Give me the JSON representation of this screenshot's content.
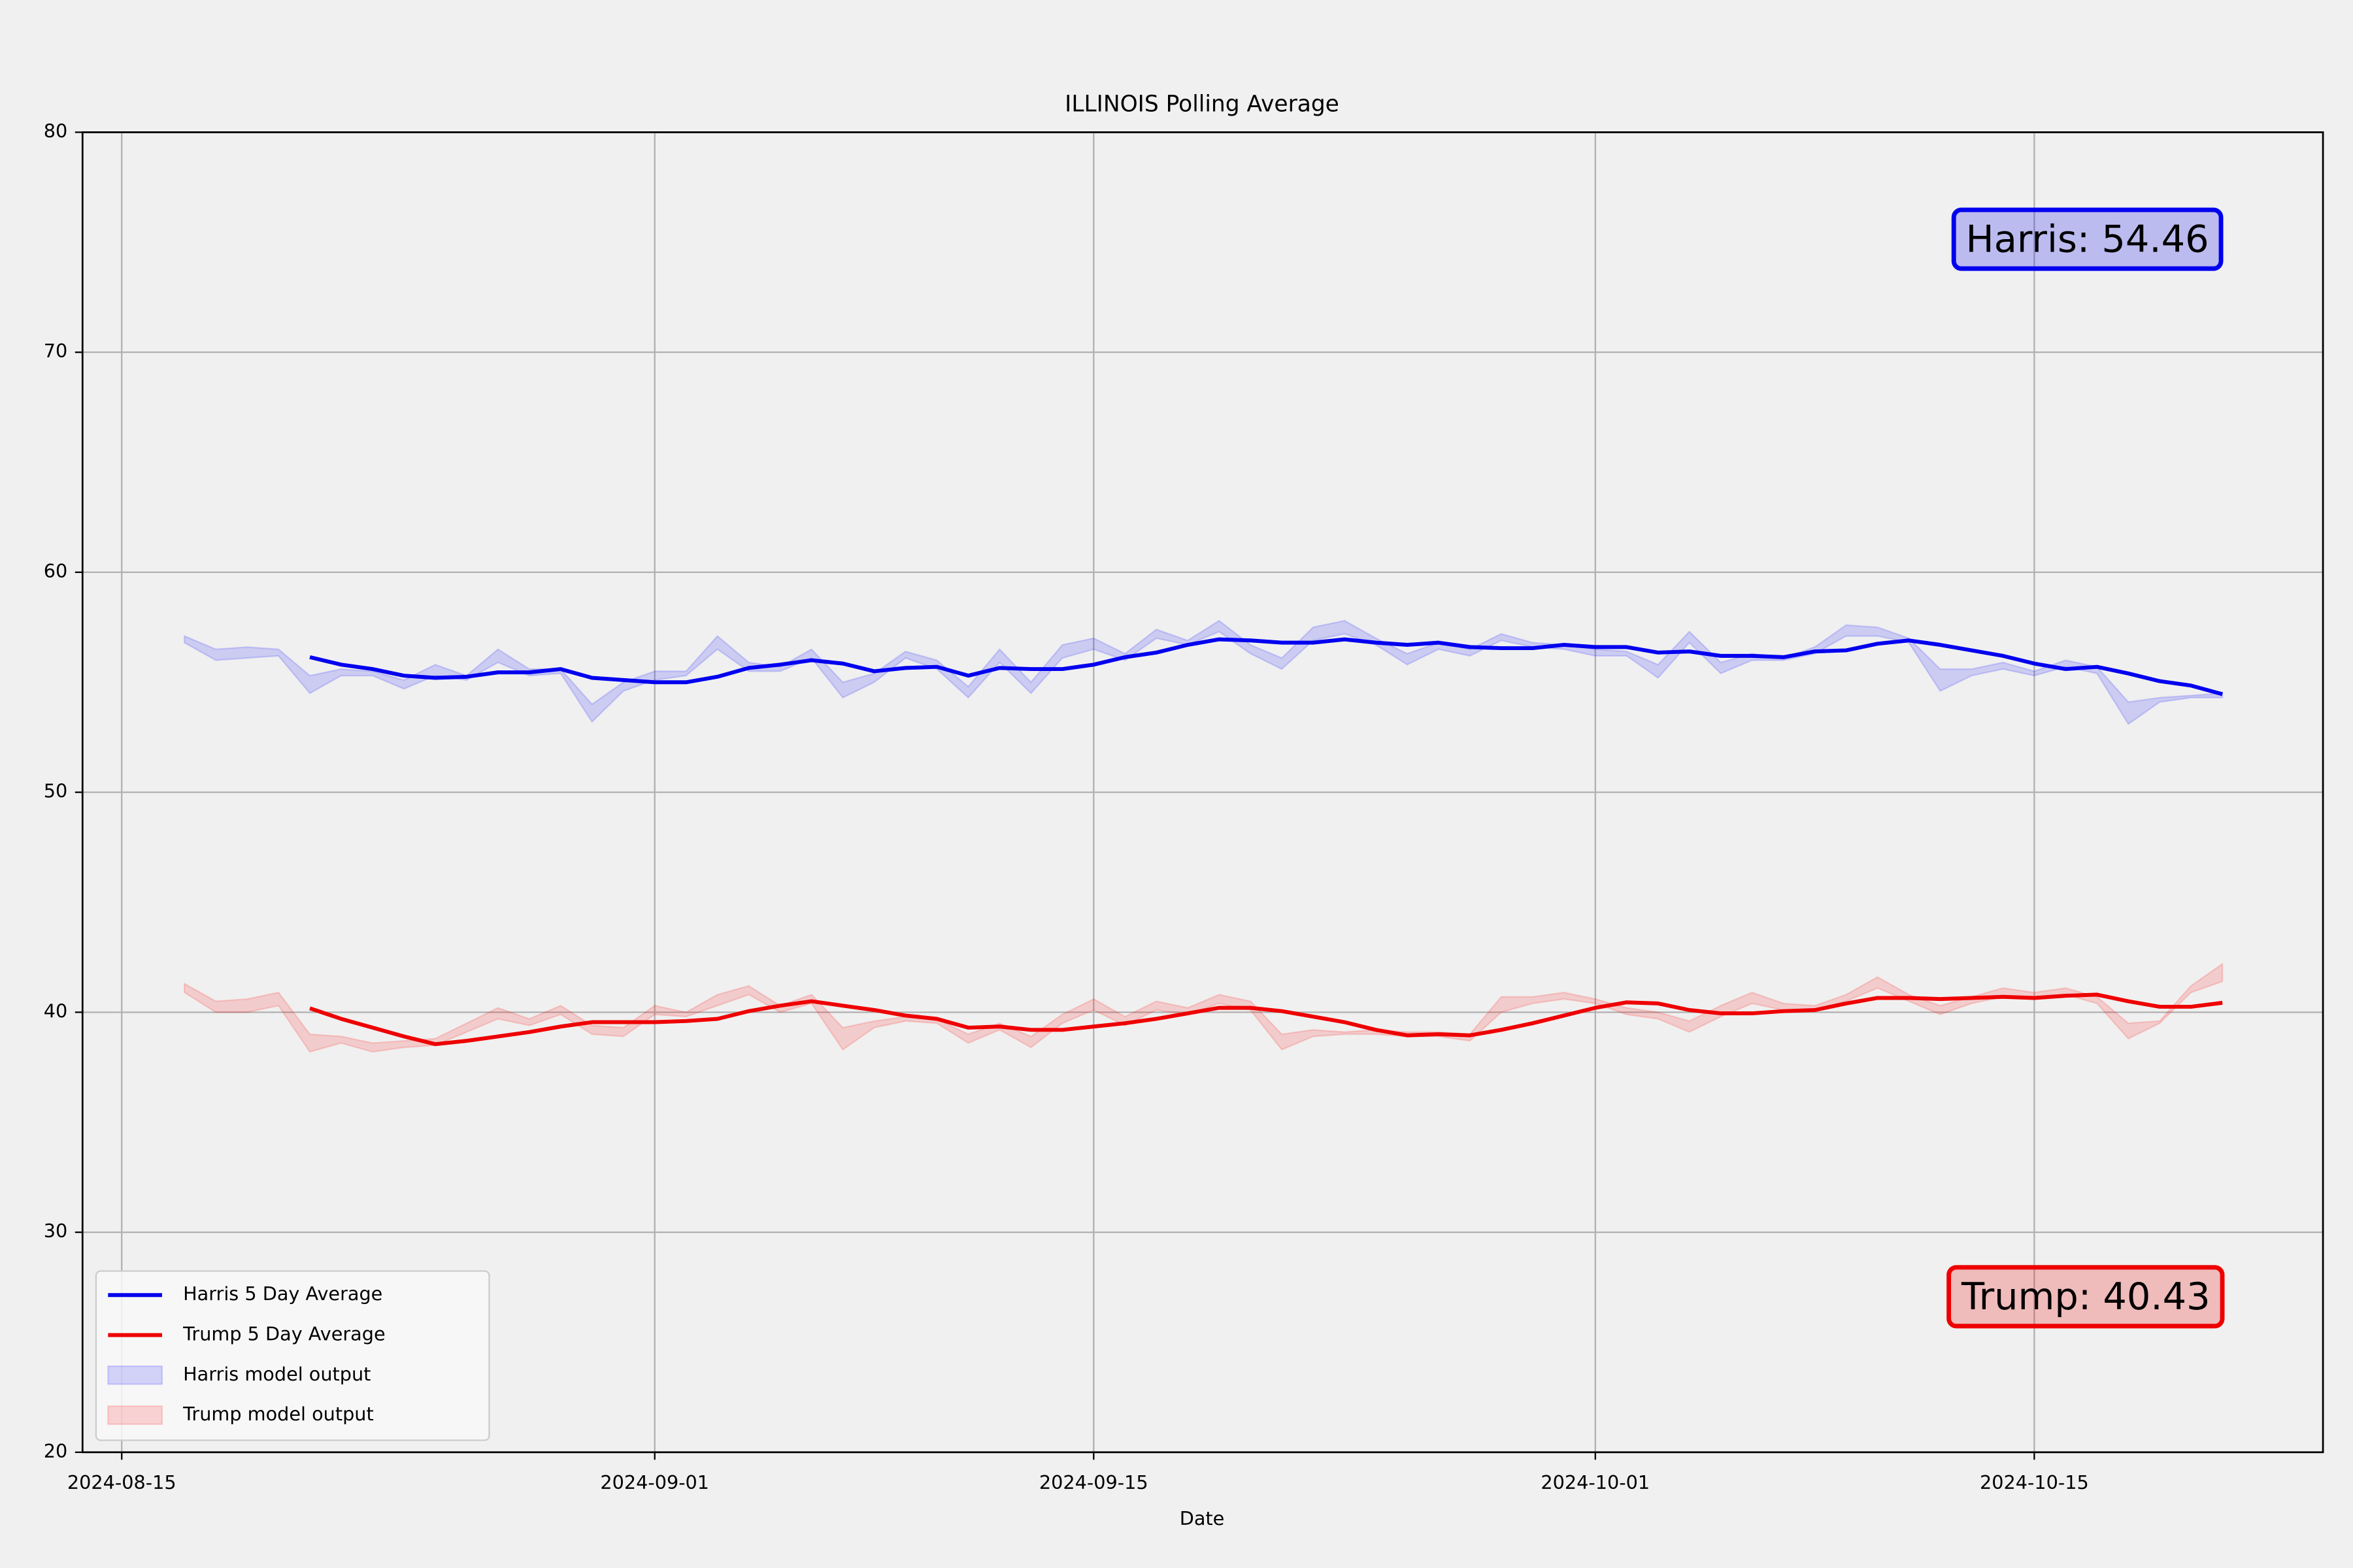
{
  "chart_data": {
    "type": "line",
    "title": "ILLINOIS Polling Average",
    "x_label": "Date",
    "x": [
      "2024-08-17",
      "2024-08-18",
      "2024-08-19",
      "2024-08-20",
      "2024-08-21",
      "2024-08-22",
      "2024-08-23",
      "2024-08-24",
      "2024-08-25",
      "2024-08-26",
      "2024-08-27",
      "2024-08-28",
      "2024-08-29",
      "2024-08-30",
      "2024-08-31",
      "2024-09-01",
      "2024-09-02",
      "2024-09-03",
      "2024-09-04",
      "2024-09-05",
      "2024-09-06",
      "2024-09-07",
      "2024-09-08",
      "2024-09-09",
      "2024-09-10",
      "2024-09-11",
      "2024-09-12",
      "2024-09-13",
      "2024-09-14",
      "2024-09-15",
      "2024-09-16",
      "2024-09-17",
      "2024-09-18",
      "2024-09-19",
      "2024-09-20",
      "2024-09-21",
      "2024-09-22",
      "2024-09-23",
      "2024-09-24",
      "2024-09-25",
      "2024-09-26",
      "2024-09-27",
      "2024-09-28",
      "2024-09-29",
      "2024-09-30",
      "2024-10-01",
      "2024-10-02",
      "2024-10-03",
      "2024-10-04",
      "2024-10-05",
      "2024-10-06",
      "2024-10-07",
      "2024-10-08",
      "2024-10-09",
      "2024-10-10",
      "2024-10-11",
      "2024-10-12",
      "2024-10-13",
      "2024-10-14",
      "2024-10-15",
      "2024-10-16",
      "2024-10-17",
      "2024-10-18",
      "2024-10-19",
      "2024-10-20",
      "2024-10-21"
    ],
    "series": [
      {
        "name": "Harris 5 Day Average",
        "color": "#0000ee",
        "values": [
          null,
          null,
          null,
          null,
          56.14,
          55.8,
          55.6,
          55.3,
          55.2,
          55.25,
          55.45,
          55.45,
          55.6,
          55.2,
          55.1,
          55.0,
          55.0,
          55.25,
          55.65,
          55.8,
          56.0,
          55.85,
          55.5,
          55.65,
          55.7,
          55.3,
          55.65,
          55.6,
          55.6,
          55.8,
          56.14,
          56.35,
          56.7,
          56.95,
          56.9,
          56.8,
          56.8,
          56.95,
          56.8,
          56.7,
          56.8,
          56.6,
          56.55,
          56.55,
          56.7,
          56.6,
          56.6,
          56.35,
          56.4,
          56.2,
          56.2,
          56.14,
          56.4,
          56.45,
          56.75,
          56.9,
          56.7,
          56.45,
          56.2,
          55.85,
          55.6,
          55.7,
          55.4,
          55.05,
          54.85,
          54.46
        ]
      },
      {
        "name": "Trump 5 Day Average",
        "color": "#ee0000",
        "values": [
          null,
          null,
          null,
          null,
          40.18,
          39.7,
          39.3,
          38.9,
          38.55,
          38.7,
          38.9,
          39.1,
          39.35,
          39.55,
          39.55,
          39.55,
          39.6,
          39.7,
          40.05,
          40.3,
          40.5,
          40.3,
          40.1,
          39.85,
          39.7,
          39.3,
          39.35,
          39.2,
          39.2,
          39.35,
          39.5,
          39.7,
          39.95,
          40.2,
          40.2,
          40.05,
          39.8,
          39.55,
          39.2,
          38.95,
          39.0,
          38.95,
          39.2,
          39.5,
          39.85,
          40.2,
          40.45,
          40.4,
          40.1,
          39.95,
          39.95,
          40.05,
          40.1,
          40.4,
          40.65,
          40.65,
          40.6,
          40.65,
          40.7,
          40.65,
          40.75,
          40.8,
          40.5,
          40.25,
          40.25,
          40.43
        ]
      }
    ],
    "bands": [
      {
        "name": "Harris model output",
        "color": "rgba(0,0,255,0.15)",
        "upper": [
          57.1,
          56.5,
          56.6,
          56.5,
          55.3,
          55.6,
          55.5,
          55.1,
          55.8,
          55.3,
          56.5,
          55.6,
          55.6,
          54.0,
          55.0,
          55.5,
          55.5,
          57.1,
          55.9,
          55.7,
          56.5,
          55.0,
          55.4,
          56.4,
          56.0,
          54.8,
          56.5,
          55.0,
          56.7,
          57.0,
          56.3,
          57.4,
          56.9,
          57.8,
          56.7,
          56.1,
          57.5,
          57.8,
          57.0,
          56.3,
          56.8,
          56.5,
          57.2,
          56.8,
          56.7,
          56.5,
          56.4,
          55.8,
          57.3,
          55.9,
          56.3,
          56.1,
          56.6,
          57.6,
          57.5,
          57.0,
          55.6,
          55.6,
          55.9,
          55.5,
          56.0,
          55.7,
          54.1,
          54.3,
          54.4,
          54.5
        ],
        "lower": [
          56.8,
          56.0,
          56.1,
          56.2,
          54.5,
          55.3,
          55.3,
          54.7,
          55.3,
          55.1,
          55.9,
          55.3,
          55.4,
          53.2,
          54.6,
          55.1,
          55.3,
          56.5,
          55.5,
          55.5,
          56.1,
          54.3,
          55.0,
          56.1,
          55.6,
          54.3,
          55.9,
          54.5,
          56.1,
          56.5,
          56.0,
          57.0,
          56.7,
          57.3,
          56.3,
          55.6,
          56.9,
          57.2,
          56.7,
          55.8,
          56.5,
          56.2,
          56.9,
          56.6,
          56.5,
          56.2,
          56.2,
          55.2,
          56.8,
          55.4,
          56.0,
          56.0,
          56.3,
          57.1,
          57.1,
          56.8,
          54.6,
          55.3,
          55.6,
          55.3,
          55.7,
          55.4,
          53.1,
          54.1,
          54.3,
          54.3
        ]
      },
      {
        "name": "Trump model output",
        "color": "rgba(255,0,0,0.15)",
        "upper": [
          41.3,
          40.5,
          40.6,
          40.9,
          39.0,
          38.9,
          38.6,
          38.7,
          38.8,
          39.5,
          40.2,
          39.7,
          40.3,
          39.4,
          39.3,
          40.3,
          40.0,
          40.8,
          41.2,
          40.3,
          40.8,
          39.3,
          39.6,
          39.8,
          39.7,
          39.0,
          39.5,
          38.9,
          39.9,
          40.6,
          39.8,
          40.5,
          40.2,
          40.8,
          40.5,
          39.0,
          39.2,
          39.1,
          39.2,
          39.1,
          39.1,
          39.0,
          40.7,
          40.7,
          40.9,
          40.6,
          40.2,
          40.0,
          39.6,
          40.3,
          40.9,
          40.4,
          40.3,
          40.8,
          41.6,
          40.8,
          40.3,
          40.7,
          41.1,
          40.9,
          41.1,
          40.7,
          39.5,
          39.6,
          41.2,
          42.2
        ],
        "lower": [
          40.9,
          40.0,
          40.0,
          40.3,
          38.2,
          38.6,
          38.2,
          38.4,
          38.5,
          39.1,
          39.7,
          39.4,
          39.9,
          39.0,
          38.9,
          39.9,
          39.8,
          40.3,
          40.8,
          40.0,
          40.4,
          38.3,
          39.3,
          39.6,
          39.5,
          38.6,
          39.2,
          38.4,
          39.5,
          40.1,
          39.4,
          40.1,
          39.9,
          40.4,
          40.1,
          38.3,
          38.9,
          39.0,
          39.0,
          38.9,
          38.9,
          38.7,
          40.0,
          40.4,
          40.6,
          40.4,
          39.9,
          39.7,
          39.1,
          39.8,
          40.4,
          40.1,
          40.1,
          40.5,
          41.1,
          40.5,
          39.9,
          40.4,
          40.7,
          40.6,
          40.8,
          40.4,
          38.8,
          39.5,
          40.9,
          41.4
        ]
      }
    ],
    "annotations": [
      {
        "text": "Harris: 54.46",
        "color": "#0000ee"
      },
      {
        "text": "Trump: 40.43",
        "color": "#ee0000"
      }
    ],
    "xlim": [
      "2024-08-13T18:00:00",
      "2024-10-24T05:00:00"
    ],
    "xticks": [
      "2024-08-15",
      "2024-09-01",
      "2024-09-15",
      "2024-10-01",
      "2024-10-15"
    ],
    "ylim": [
      20,
      80
    ],
    "yticks": [
      20,
      30,
      40,
      50,
      60,
      70,
      80
    ],
    "grid": true,
    "legend": "lower left"
  }
}
